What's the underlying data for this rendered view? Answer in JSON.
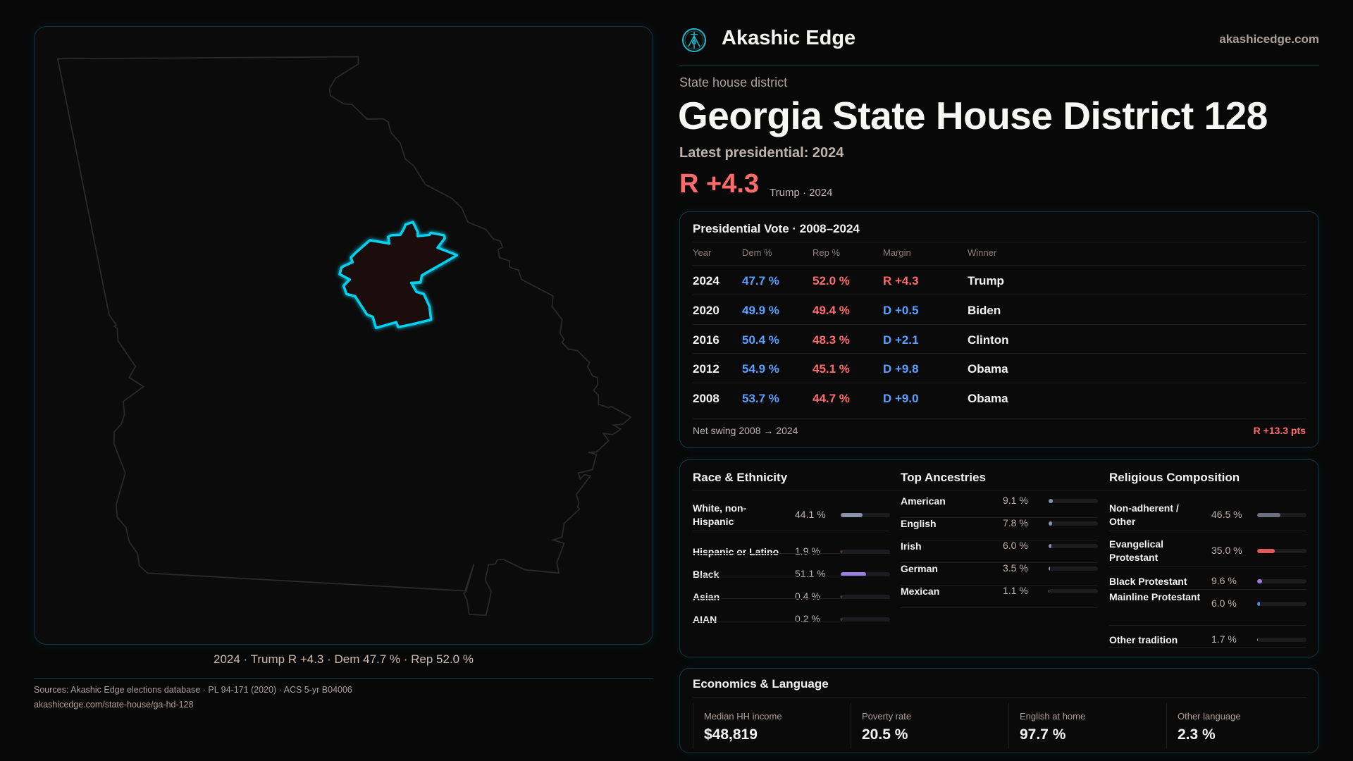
{
  "brand": {
    "name": "Akashic Edge",
    "site": "akashicedge.com",
    "logo_icon": "akashic-edge-emblem"
  },
  "header": {
    "kicker": "State house district",
    "title": "Georgia State House District 128",
    "latest": "Latest presidential: 2024",
    "margin": "R +4.3",
    "margin_sub": "Trump · 2024"
  },
  "map": {
    "caption": "2024 · Trump R +4.3 · Dem 47.7 % · Rep 52.0 %",
    "highlight_color": "#00d2f0",
    "district_fill": "#1e0f10"
  },
  "colors": {
    "dem": "#5aa0ff",
    "rep": "#ff6b6b",
    "accent": "#00d2f0"
  },
  "vote": {
    "title": "Presidential Vote · 2008–2024",
    "columns": [
      "Year",
      "Dem %",
      "Rep %",
      "Margin",
      "Winner"
    ],
    "rows": [
      {
        "year": "2024",
        "dem": "47.7 %",
        "rep": "52.0 %",
        "margin": "R +4.3",
        "party": "R",
        "winner": "Trump"
      },
      {
        "year": "2020",
        "dem": "49.9 %",
        "rep": "49.4 %",
        "margin": "D +0.5",
        "party": "D",
        "winner": "Biden"
      },
      {
        "year": "2016",
        "dem": "50.4 %",
        "rep": "48.3 %",
        "margin": "D +2.1",
        "party": "D",
        "winner": "Clinton"
      },
      {
        "year": "2012",
        "dem": "54.9 %",
        "rep": "45.1 %",
        "margin": "D +9.8",
        "party": "D",
        "winner": "Obama"
      },
      {
        "year": "2008",
        "dem": "53.7 %",
        "rep": "44.7 %",
        "margin": "D +9.0",
        "party": "D",
        "winner": "Obama"
      }
    ],
    "swing_label": "Net swing 2008 → 2024",
    "swing_value": "R +13.3 pts"
  },
  "race": {
    "title": "Race & Ethnicity",
    "items": [
      {
        "label": "White, non-Hispanic",
        "value": "44.1 %",
        "pct": 44.1,
        "color": "#8a94a6"
      },
      {
        "label": "Hispanic or Latino",
        "value": "1.9 %",
        "pct": 1.9,
        "color": "#e0a030"
      },
      {
        "label": "Black",
        "value": "51.1 %",
        "pct": 51.1,
        "color": "#9b7fe0"
      },
      {
        "label": "Asian",
        "value": "0.4 %",
        "pct": 0.4,
        "color": "#2ec4a0"
      },
      {
        "label": "AIAN",
        "value": "0.2 %",
        "pct": 0.2,
        "color": "#8a94a6"
      }
    ]
  },
  "ancestry": {
    "title": "Top Ancestries",
    "items": [
      {
        "label": "American",
        "value": "9.1 %",
        "pct": 9.1,
        "color": "#8a94a6"
      },
      {
        "label": "English",
        "value": "7.8 %",
        "pct": 7.8,
        "color": "#8a94a6"
      },
      {
        "label": "Irish",
        "value": "6.0 %",
        "pct": 6.0,
        "color": "#8a94a6"
      },
      {
        "label": "German",
        "value": "3.5 %",
        "pct": 3.5,
        "color": "#8a94a6"
      },
      {
        "label": "Mexican",
        "value": "1.1 %",
        "pct": 1.1,
        "color": "#8a94a6"
      }
    ]
  },
  "religion": {
    "title": "Religious Composition",
    "items": [
      {
        "label": "Non-adherent / Other",
        "value": "46.5 %",
        "pct": 46.5,
        "color": "#6b7080"
      },
      {
        "label": "Evangelical Protestant",
        "value": "35.0 %",
        "pct": 35.0,
        "color": "#e05a5a"
      },
      {
        "label": "Black Protestant",
        "value": "9.6 %",
        "pct": 9.6,
        "color": "#9b7fe0"
      },
      {
        "label": "Mainline Protestant",
        "value": "6.0 %",
        "pct": 6.0,
        "color": "#4a90e2"
      },
      {
        "label": "Other tradition",
        "value": "1.7 %",
        "pct": 1.7,
        "color": "#8a94a6"
      }
    ]
  },
  "econ": {
    "title": "Economics & Language",
    "stats": [
      {
        "label": "Median HH income",
        "value": "$48,819"
      },
      {
        "label": "Poverty rate",
        "value": "20.5 %"
      },
      {
        "label": "English at home",
        "value": "97.7 %"
      },
      {
        "label": "Other language",
        "value": "2.3 %"
      }
    ]
  },
  "footer": {
    "sources": "Sources: Akashic Edge elections database · PL 94-171 (2020) · ACS 5-yr B04006",
    "url": "akashicedge.com/state-house/ga-hd-128"
  }
}
